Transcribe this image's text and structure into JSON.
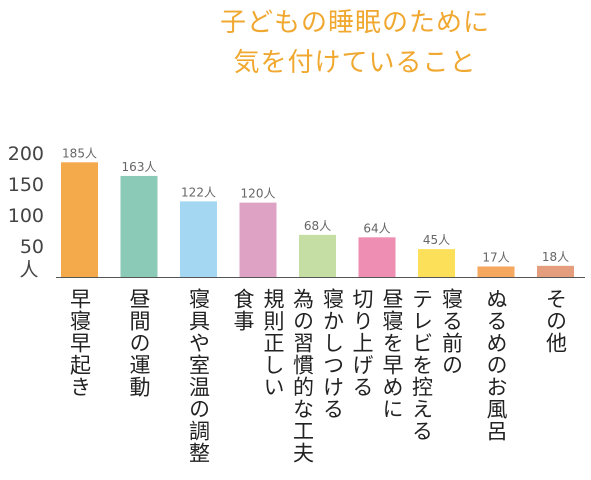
{
  "chart_data": {
    "type": "bar",
    "title_lines": [
      "子どもの睡眠のために",
      "気を付けていること"
    ],
    "unit": "人",
    "ylim": [
      0,
      220
    ],
    "yticks": [
      50,
      100,
      150,
      200
    ],
    "categories": [
      "早寝早起き",
      "昼間の運動",
      "寝具や室温の調整",
      "規則正しい\n食事",
      "寝かしつける\n為の習慣的な工夫",
      "昼寝を早めに\n切り上げる",
      "寝る前の\nテレビを控える",
      "ぬるめのお風呂",
      "その他"
    ],
    "values": [
      185,
      163,
      122,
      120,
      68,
      64,
      45,
      17,
      18
    ],
    "value_labels": [
      "185人",
      "163人",
      "122人",
      "120人",
      "68人",
      "64人",
      "45人",
      "17人",
      "18人"
    ],
    "colors": [
      "#f4a94b",
      "#8ccab8",
      "#a4d8f2",
      "#dea2c4",
      "#c4dea4",
      "#ee8eb2",
      "#fce05a",
      "#f6a85e",
      "#e49e7e"
    ],
    "grid": false
  }
}
